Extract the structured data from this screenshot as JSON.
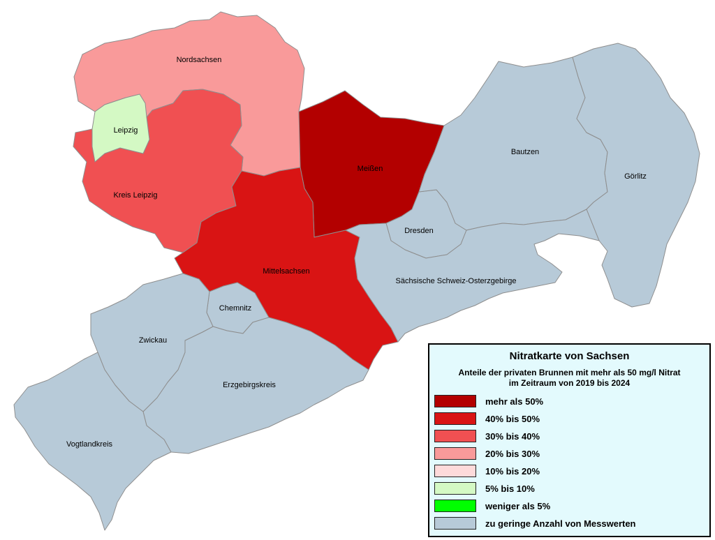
{
  "legend": {
    "title": "Nitratkarte von Sachsen",
    "subtitle_line1": "Anteile der privaten Brunnen mit mehr als 50 mg/l Nitrat",
    "subtitle_line2": "im Zeitraum von 2019 bis 2024",
    "items": [
      {
        "label": "mehr als 50%",
        "color": "#b30000"
      },
      {
        "label": "40% bis 50%",
        "color": "#d91414"
      },
      {
        "label": "30% bis 40%",
        "color": "#f05052"
      },
      {
        "label": "20% bis 30%",
        "color": "#f99a9a"
      },
      {
        "label": "10% bis 20%",
        "color": "#fddada"
      },
      {
        "label": "5% bis 10%",
        "color": "#d4f9c4"
      },
      {
        "label": "weniger als 5%",
        "color": "#00ff00"
      },
      {
        "label": "zu geringe Anzahl von Messwerten",
        "color": "#b7cad8"
      }
    ]
  },
  "regions": [
    {
      "name": "Nordsachsen",
      "class": "20% bis 30%",
      "color": "#f99a9a"
    },
    {
      "name": "Leipzig",
      "class": "5% bis 10%",
      "color": "#d4f9c4"
    },
    {
      "name": "Kreis Leipzig",
      "class": "30% bis 40%",
      "color": "#f05052"
    },
    {
      "name": "Meißen",
      "class": "mehr als 50%",
      "color": "#b30000"
    },
    {
      "name": "Mittelsachsen",
      "class": "40% bis 50%",
      "color": "#d91414"
    },
    {
      "name": "Bautzen",
      "class": "zu geringe Anzahl von Messwerten",
      "color": "#b7cad8"
    },
    {
      "name": "Görlitz",
      "class": "zu geringe Anzahl von Messwerten",
      "color": "#b7cad8"
    },
    {
      "name": "Dresden",
      "class": "zu geringe Anzahl von Messwerten",
      "color": "#b7cad8"
    },
    {
      "name": "Sächsische Schweiz-Osterzgebirge",
      "class": "zu geringe Anzahl von Messwerten",
      "color": "#b7cad8"
    },
    {
      "name": "Chemnitz",
      "class": "zu geringe Anzahl von Messwerten",
      "color": "#b7cad8"
    },
    {
      "name": "Zwickau",
      "class": "zu geringe Anzahl von Messwerten",
      "color": "#b7cad8"
    },
    {
      "name": "Erzgebirgskreis",
      "class": "zu geringe Anzahl von Messwerten",
      "color": "#b7cad8"
    },
    {
      "name": "Vogtlandkreis",
      "class": "zu geringe Anzahl von Messwerten",
      "color": "#b7cad8"
    }
  ]
}
